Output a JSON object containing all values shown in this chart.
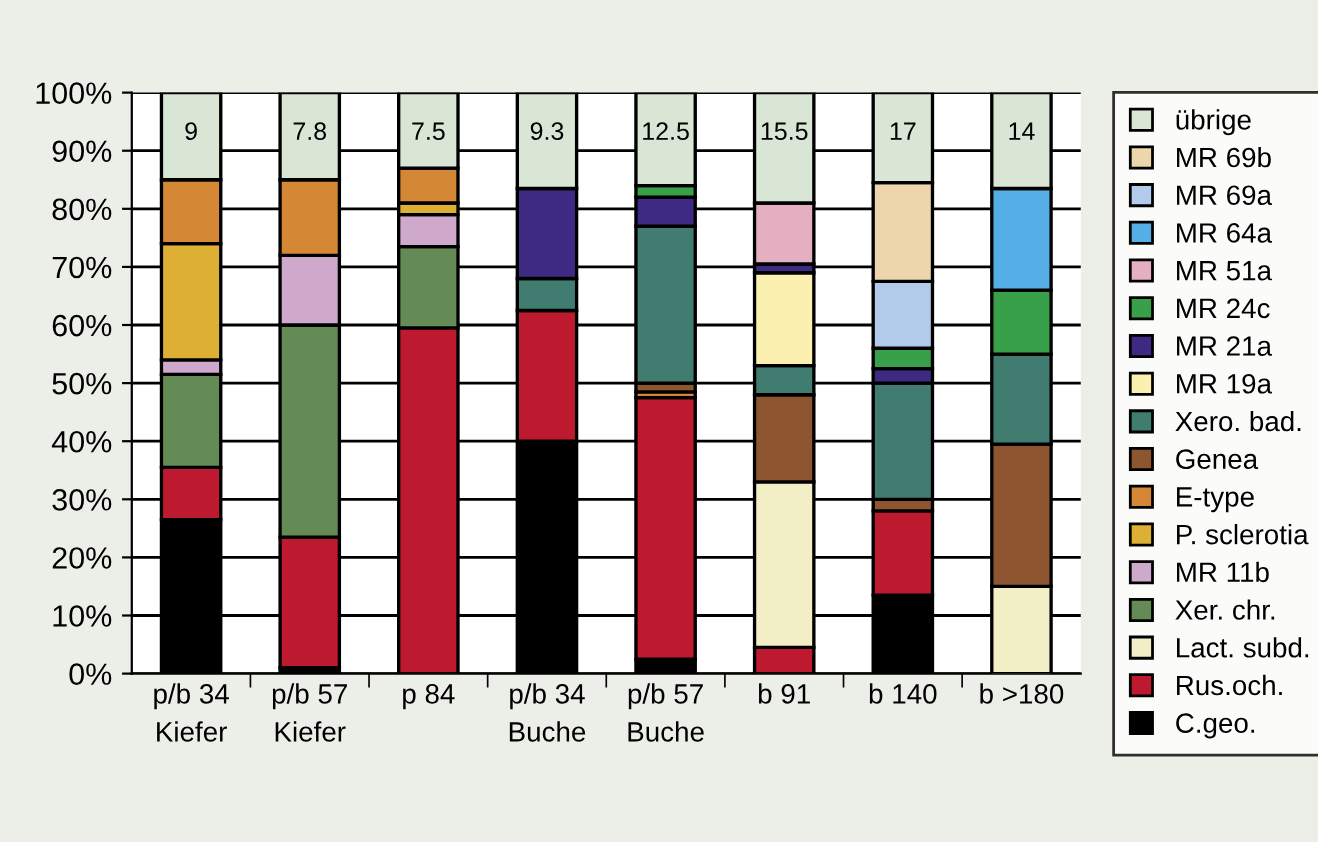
{
  "chart_data": {
    "type": "bar",
    "stacked": true,
    "categories": [
      "p/b 34\nKiefer",
      "p/b 57\nKiefer",
      "p 84",
      "p/b 34\nBuche",
      "p/b 57\nBuche",
      "b 91",
      "b 140",
      "b >180"
    ],
    "ylim": [
      0,
      100
    ],
    "yticks": [
      {
        "value": 0,
        "label": "0%"
      },
      {
        "value": 10,
        "label": "10%"
      },
      {
        "value": 20,
        "label": "20%"
      },
      {
        "value": 30,
        "label": "30%"
      },
      {
        "value": 40,
        "label": "40%"
      },
      {
        "value": 50,
        "label": "50%"
      },
      {
        "value": 60,
        "label": "60%"
      },
      {
        "value": 70,
        "label": "70%"
      },
      {
        "value": 80,
        "label": "80%"
      },
      {
        "value": 90,
        "label": "90%"
      },
      {
        "value": 100,
        "label": "100%"
      }
    ],
    "grid": "y",
    "legend": "right",
    "series": [
      {
        "name": "C.geo.",
        "color": "#000000",
        "values": [
          26.5,
          1,
          null,
          40,
          2.5,
          null,
          13.5,
          null
        ]
      },
      {
        "name": "Rus.och.",
        "color": "#be1a2f",
        "values": [
          9,
          22.5,
          59.5,
          22.5,
          45,
          4.5,
          14.5,
          null
        ]
      },
      {
        "name": "Lact. subd.",
        "color": "#f2eec6",
        "values": [
          null,
          null,
          null,
          null,
          null,
          28.5,
          null,
          15
        ]
      },
      {
        "name": "Xer. chr.",
        "color": "#648a55",
        "values": [
          16,
          36.5,
          14,
          null,
          null,
          null,
          null,
          null
        ]
      },
      {
        "name": "MR 11b",
        "color": "#cfa9cc",
        "values": [
          2.5,
          12,
          5.5,
          null,
          null,
          null,
          null,
          null
        ]
      },
      {
        "name": "P. sclerotia",
        "color": "#ddb035",
        "values": [
          20,
          null,
          2,
          null,
          null,
          null,
          null,
          null
        ]
      },
      {
        "name": "E-type",
        "color": "#d48735",
        "values": [
          11,
          13,
          6,
          null,
          1,
          null,
          null,
          null
        ]
      },
      {
        "name": "Genea",
        "color": "#8d5630",
        "values": [
          null,
          null,
          null,
          null,
          1.5,
          15,
          2,
          24.5
        ]
      },
      {
        "name": "Xero. bad.",
        "color": "#417c70",
        "values": [
          null,
          null,
          null,
          5.5,
          27,
          5,
          20,
          15.5
        ]
      },
      {
        "name": "MR 19a",
        "color": "#fbf0b0",
        "values": [
          null,
          null,
          null,
          null,
          null,
          16,
          null,
          null
        ]
      },
      {
        "name": "MR 21a",
        "color": "#3e2a82",
        "values": [
          null,
          null,
          null,
          15.5,
          5,
          1.5,
          2.5,
          null
        ]
      },
      {
        "name": "MR 24c",
        "color": "#38a048",
        "values": [
          null,
          null,
          null,
          null,
          2,
          null,
          3.5,
          11
        ]
      },
      {
        "name": "MR 51a",
        "color": "#e4afc1",
        "values": [
          null,
          null,
          null,
          null,
          null,
          10.5,
          null,
          null
        ]
      },
      {
        "name": "MR 64a",
        "color": "#56aee6",
        "values": [
          null,
          null,
          null,
          null,
          null,
          null,
          null,
          17.5
        ]
      },
      {
        "name": "MR 69a",
        "color": "#b3cbea",
        "values": [
          null,
          null,
          null,
          null,
          null,
          null,
          11.5,
          null
        ]
      },
      {
        "name": "MR 69b",
        "color": "#edd6ab",
        "values": [
          null,
          null,
          null,
          null,
          null,
          null,
          17,
          null
        ]
      },
      {
        "name": "übrige",
        "color": "#d9e6d6",
        "values": [
          15,
          15,
          13,
          16.5,
          16,
          19,
          15.5,
          16.5
        ]
      }
    ],
    "annotations": [
      "9",
      "7.8",
      "7.5",
      "9.3",
      "12.5",
      "15.5",
      "17",
      "14"
    ]
  }
}
